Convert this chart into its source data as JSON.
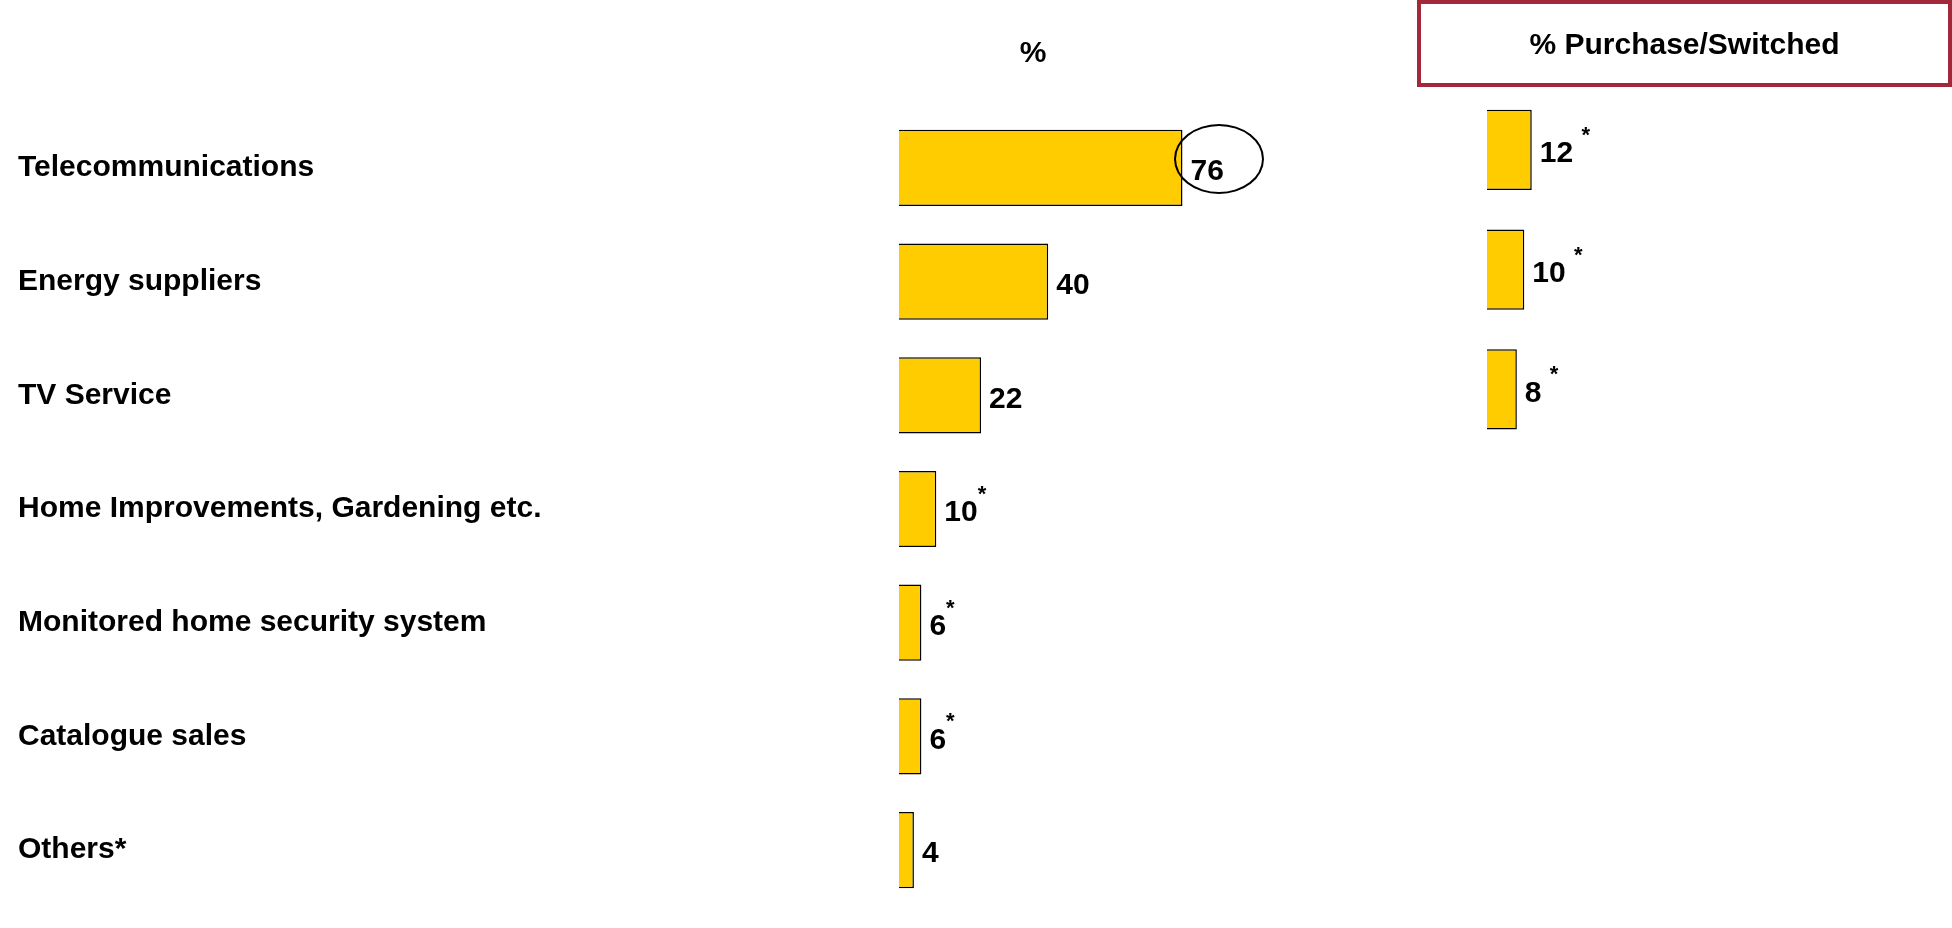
{
  "chart_data": [
    {
      "type": "bar",
      "orientation": "horizontal",
      "title": "%",
      "categories": [
        "Telecommunications",
        "Energy suppliers",
        "TV Service",
        "Home Improvements, Gardening etc.",
        "Monitored home security system",
        "Catalogue sales",
        "Others*"
      ],
      "values": [
        76,
        40,
        22,
        10,
        6,
        6,
        4
      ],
      "color": "#ffcc00",
      "value_labels": [
        "76",
        "40",
        "22",
        "10$^{*}$",
        "6$^{*}$",
        "6$^{*}$",
        "4"
      ],
      "tick_labels": "y",
      "legend": false
    },
    {
      "type": "bar",
      "orientation": "horizontal",
      "title": "% Purchase/Switched",
      "categories": [
        null,
        null,
        null,
        null,
        null,
        null,
        null
      ],
      "values": [
        12,
        10,
        8,
        null,
        null,
        null,
        null
      ],
      "color": "#ffcc00",
      "value_labels": [
        "12 $^{*}$",
        "10 $^{*}$",
        "8 $^{*}$",
        null,
        null,
        null,
        null
      ],
      "tick_labels": false,
      "legend": false
    }
  ]
}
